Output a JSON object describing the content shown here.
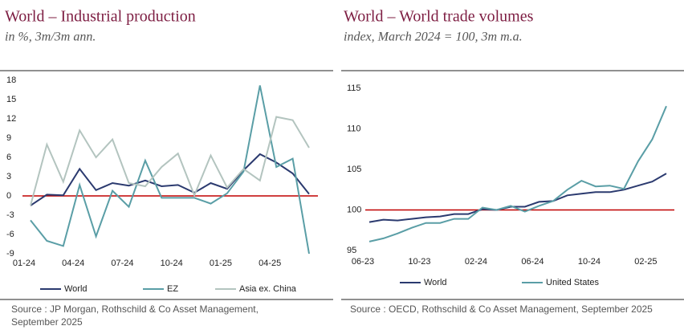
{
  "chart_data": [
    {
      "type": "line",
      "title": "World – Industrial production",
      "subtitle": "in %, 3m/3m ann.",
      "categories": [
        "01-24",
        null,
        null,
        "04-24",
        null,
        null,
        "07-24",
        null,
        null,
        "10-24",
        null,
        null,
        "01-25",
        null,
        null,
        "04-25",
        null,
        null
      ],
      "series": [
        {
          "name": "World",
          "color": "#2b3a6f",
          "values": [
            -1.5,
            0.2,
            0.1,
            4.2,
            0.9,
            2.0,
            1.6,
            2.4,
            1.5,
            1.7,
            0.5,
            2.0,
            1.1,
            4.0,
            6.5,
            5.2,
            3.5,
            0.3
          ]
        },
        {
          "name": "EZ",
          "color": "#5a9ea6",
          "values": [
            -3.8,
            -7.0,
            -7.8,
            1.7,
            -6.3,
            0.8,
            -1.7,
            5.5,
            -0.3,
            -0.3,
            -0.3,
            -1.2,
            0.4,
            3.8,
            17.2,
            4.5,
            5.8,
            -9.0
          ]
        },
        {
          "name": "Asia ex. China",
          "color": "#b3c4bf",
          "values": [
            -1.5,
            8.0,
            2.2,
            10.2,
            6.0,
            8.8,
            2.0,
            1.5,
            4.5,
            6.6,
            0.1,
            6.3,
            1.3,
            4.2,
            2.4,
            12.3,
            11.8,
            7.5
          ]
        }
      ],
      "ylim": [
        -9,
        18
      ],
      "yticks": [
        -9,
        -6,
        -3,
        0,
        3,
        6,
        9,
        12,
        15,
        18
      ],
      "reference_line": 0,
      "reference_color": "#c00000",
      "grid": false,
      "legend": "bottom",
      "source": [
        "Source : JP Morgan, Rothschild & Co Asset Management,",
        "September 2025"
      ]
    },
    {
      "type": "line",
      "title": "World – World trade volumes",
      "subtitle": "index, March 2024 = 100, 3m m.a.",
      "categories": [
        "06-23",
        null,
        null,
        null,
        "10-23",
        null,
        null,
        null,
        "02-24",
        null,
        null,
        null,
        "06-24",
        null,
        null,
        null,
        "10-24",
        null,
        null,
        null,
        "02-25",
        null
      ],
      "series": [
        {
          "name": "World",
          "color": "#2b3a6f",
          "values": [
            98.5,
            98.8,
            98.7,
            98.9,
            99.1,
            99.2,
            99.5,
            99.5,
            100.1,
            100.0,
            100.4,
            100.4,
            101.0,
            101.1,
            101.8,
            102.0,
            102.2,
            102.2,
            102.5,
            103.0,
            103.5,
            104.5
          ]
        },
        {
          "name": "United States",
          "color": "#5a9ea6",
          "values": [
            96.1,
            96.5,
            97.1,
            97.8,
            98.4,
            98.4,
            98.9,
            98.9,
            100.3,
            100.0,
            100.5,
            99.8,
            100.5,
            101.1,
            102.5,
            103.6,
            102.9,
            103.0,
            102.6,
            106.0,
            108.7,
            112.8
          ]
        }
      ],
      "ylim": [
        95,
        115
      ],
      "yticks": [
        95,
        100,
        105,
        110,
        115
      ],
      "reference_line": 100,
      "reference_color": "#c00000",
      "grid": false,
      "legend": "bottom",
      "source": [
        "Source : OECD, Rothschild & Co Asset Management, September 2025"
      ]
    }
  ]
}
